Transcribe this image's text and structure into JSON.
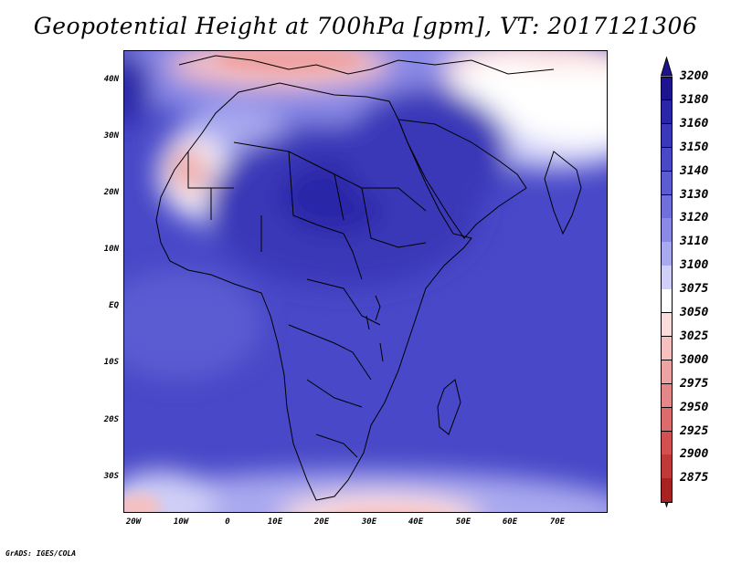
{
  "title": "Geopotential Height at 700hPa [gpm], VT: 2017121306",
  "footer": "GrADS: IGES/COLA",
  "map": {
    "projection": "lat-lon",
    "lon_range": [
      -23,
      80
    ],
    "lat_range": [
      -37,
      45
    ],
    "lat_labels": [
      "40N",
      "30N",
      "20N",
      "10N",
      "EQ",
      "10S",
      "20S",
      "30S"
    ],
    "lon_labels": [
      "20W",
      "10W",
      "0",
      "10E",
      "20E",
      "30E",
      "40E",
      "50E",
      "60E",
      "70E"
    ],
    "coastline_color": "#000000"
  },
  "colorbar": {
    "levels": [
      "3200",
      "3180",
      "3160",
      "3150",
      "3140",
      "3130",
      "3120",
      "3110",
      "3100",
      "3075",
      "3050",
      "3025",
      "3000",
      "2975",
      "2950",
      "2925",
      "2900",
      "2875"
    ],
    "colors": [
      "#1e1490",
      "#2b25a8",
      "#3a37b8",
      "#4a48c6",
      "#5c5bd2",
      "#706fdc",
      "#8a8ae6",
      "#a9a9ef",
      "#cfcff7",
      "#ffffff",
      "#fbdcdc",
      "#f6c0c0",
      "#eea3a3",
      "#e68787",
      "#dc6b6b",
      "#d25050",
      "#c13838",
      "#a82222"
    ],
    "top_arrow_color": "#1e1490",
    "bottom_arrow_color": "#a82222"
  }
}
